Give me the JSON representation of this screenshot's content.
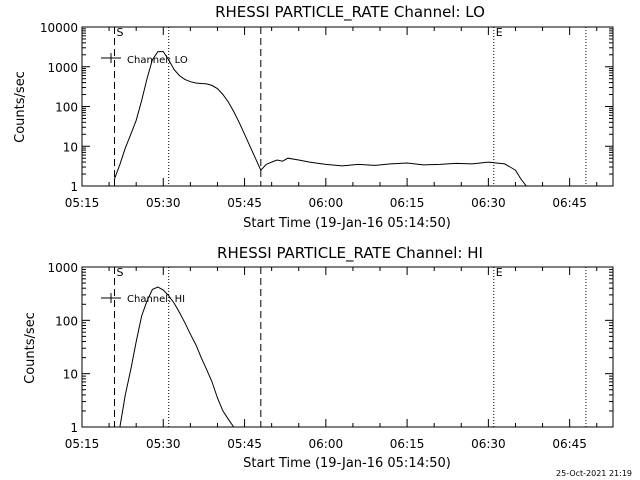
{
  "footer": {
    "timestamp": "25-Oct-2021 21:19"
  },
  "chart_data": [
    {
      "type": "line",
      "title": "RHESSI PARTICLE_RATE Channel: LO",
      "xlabel": "Start Time (19-Jan-16 05:14:50)",
      "ylabel": "Counts/sec",
      "y_scale": "log",
      "ylim": [
        1,
        10000
      ],
      "y_ticks": [
        1,
        10,
        100,
        1000,
        10000
      ],
      "y_tick_labels": [
        "1",
        "10",
        "100",
        "1000",
        "10000"
      ],
      "xlim": [
        "05:15",
        "06:53"
      ],
      "x_tick_labels": [
        "05:15",
        "05:30",
        "05:45",
        "06:00",
        "06:15",
        "06:30",
        "06:45"
      ],
      "legend": {
        "label": "Channel: LO",
        "position": "top-left"
      },
      "markers": [
        {
          "label": "S",
          "x": "05:21"
        },
        {
          "label": "E",
          "x": "06:31"
        }
      ],
      "dashed_lines": [
        "05:21",
        "05:48"
      ],
      "dotted_lines": [
        "05:31",
        "06:31",
        "06:48"
      ],
      "series": [
        {
          "x": [
            "05:15",
            "05:17",
            "05:19",
            "05:20",
            "05:21",
            "05:21",
            "05:22",
            "05:23",
            "05:24",
            "05:25",
            "05:26",
            "05:27",
            "05:28",
            "05:29",
            "05:30",
            "05:31",
            "05:32",
            "05:33",
            "05:34",
            "05:35",
            "05:36",
            "05:37",
            "05:38",
            "05:39",
            "05:40",
            "05:41",
            "05:42",
            "05:43",
            "05:44",
            "05:45",
            "05:46",
            "05:47",
            "05:48",
            "05:49",
            "05:50",
            "05:51",
            "05:52",
            "05:53",
            "05:55",
            "05:57",
            "06:00",
            "06:03",
            "06:06",
            "06:09",
            "06:12",
            "06:15",
            "06:18",
            "06:21",
            "06:24",
            "06:27",
            "06:30",
            "06:33",
            "06:34",
            "06:35",
            "06:36",
            "06:37",
            "06:39",
            "06:41",
            "06:43",
            "06:45",
            "06:47",
            "06:48"
          ],
          "y": [
            1,
            1,
            1,
            1,
            1,
            1.5,
            3.5,
            9,
            20,
            45,
            140,
            500,
            1500,
            2400,
            2400,
            1500,
            850,
            600,
            480,
            420,
            390,
            380,
            370,
            340,
            280,
            200,
            130,
            75,
            40,
            20,
            10,
            5,
            2.5,
            3.5,
            4,
            4.5,
            4.2,
            5,
            4.5,
            4,
            3.5,
            3.2,
            3.5,
            3.3,
            3.6,
            3.8,
            3.4,
            3.5,
            3.7,
            3.6,
            4,
            3.6,
            3,
            2.5,
            1.5,
            1,
            1,
            1,
            1,
            1,
            1,
            1
          ]
        }
      ]
    },
    {
      "type": "line",
      "title": "RHESSI PARTICLE_RATE Channel: HI",
      "xlabel": "Start Time (19-Jan-16 05:14:50)",
      "ylabel": "Counts/sec",
      "y_scale": "log",
      "ylim": [
        1,
        1000
      ],
      "y_ticks": [
        1,
        10,
        100,
        1000
      ],
      "y_tick_labels": [
        "1",
        "10",
        "100",
        "1000"
      ],
      "xlim": [
        "05:15",
        "06:53"
      ],
      "x_tick_labels": [
        "05:15",
        "05:30",
        "05:45",
        "06:00",
        "06:15",
        "06:30",
        "06:45"
      ],
      "legend": {
        "label": "Channel: HI",
        "position": "top-left"
      },
      "markers": [
        {
          "label": "S",
          "x": "05:21"
        },
        {
          "label": "E",
          "x": "06:31"
        }
      ],
      "dashed_lines": [
        "05:21",
        "05:48"
      ],
      "dotted_lines": [
        "05:31",
        "06:31",
        "06:48"
      ],
      "series": [
        {
          "x": [
            "05:22",
            "05:23",
            "05:24",
            "05:25",
            "05:26",
            "05:27",
            "05:28",
            "05:29",
            "05:30",
            "05:31",
            "05:32",
            "05:33",
            "05:34",
            "05:35",
            "05:36",
            "05:37",
            "05:38",
            "05:39",
            "05:40",
            "05:41",
            "05:42",
            "05:43"
          ],
          "y": [
            1,
            4,
            12,
            40,
            120,
            230,
            380,
            420,
            370,
            290,
            210,
            140,
            90,
            55,
            35,
            20,
            12,
            7,
            3.5,
            2,
            1.4,
            1
          ]
        }
      ]
    }
  ]
}
